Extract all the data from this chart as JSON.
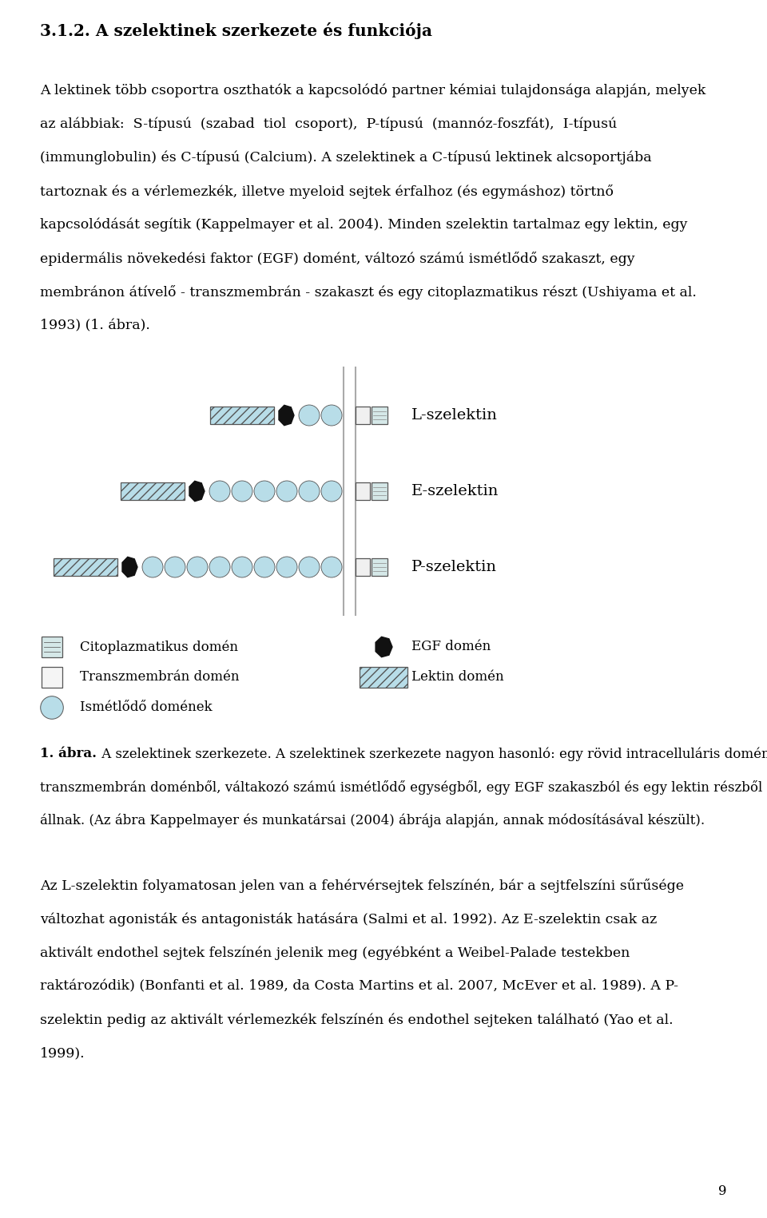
{
  "bg_color": "#ffffff",
  "text_color": "#000000",
  "lektin_color": "#b8dde8",
  "scr_color": "#b8dde8",
  "egf_color": "#111111",
  "title": "3.1.2. A szelektinek szerkezete és funkciója",
  "selectins": [
    {
      "name": "L-szelektin",
      "scr_count": 2
    },
    {
      "name": "E-szelektin",
      "scr_count": 6
    },
    {
      "name": "P-szelektin",
      "scr_count": 9
    }
  ],
  "legend_left": [
    {
      "type": "cytoplasm",
      "label": "Citoplazmatikus domén"
    },
    {
      "type": "transmembrane",
      "label": "Transzmembrán domén"
    },
    {
      "type": "scr",
      "label": "Ismétlődő domének"
    }
  ],
  "legend_right": [
    {
      "type": "egf",
      "label": "EGF domén"
    },
    {
      "type": "lektin",
      "label": "Lektin domén"
    }
  ],
  "caption_bold": "1. ábra.",
  "caption_normal": " A szelektinek szerkezete. A szelektinek szerkezete nagyon hasonló: egy rövid intracelluláris doménből,\ntranszmembrán doménből, váltakozó számú ismétlődő egységből, egy EGF szakaszból és egy lektin részből\nállnak. (Az ábra Kappelmayer és munkatársai (2004) ábrája alapján, annak módosításával készült).",
  "paragraph1_lines": [
    "A lektinek több csoportra oszthatók a kapcsolódó partner kémiai tulajdonsága alapján, melyek",
    "az alábbiak:  S-típusú  (szabad  tiol  csoport),  P-típusú  (mannóz-foszfát),  I-típusú",
    "(immunglobulin) és C-típusú (Calcium). A szelektinek a C-típusú lektinek alcsoportjába",
    "tartoznak és a vérlemezkék, illetve myeloid sejtek érfalhoz (és egymáshoz) törtnő",
    "kapcsolódását segítik (Kappelmayer et al. 2004). Minden szelektin tartalmaz egy lektin, egy",
    "epidermális növekedési faktor (EGF) domént, változó számú ismétlődő szakaszt, egy",
    "membránon átívelő - transzmembrán - szakaszt és egy citoplazmatikus részt (Ushiyama et al.",
    "1993) (1. ábra)."
  ],
  "paragraph2_lines": [
    "Az L-szelektin folyamatosan jelen van a fehérvérsejtek felszínén, bár a sejtfelszíni sűrűsége",
    "változhat agonisták és antagonisták hatására (Salmi et al. 1992). Az E-szelektin csak az",
    "aktivált endothel sejtek felszínén jelenik meg (egyébként a Weibel-Palade testekben",
    "raktározódik) (Bonfanti et al. 1989, da Costa Martins et al. 2007, McEver et al. 1989). A P-",
    "szelektin pedig az aktivált vérlemezkék felszínén és endothel sejteken található (Yao et al.",
    "1999)."
  ],
  "page_number": "9"
}
